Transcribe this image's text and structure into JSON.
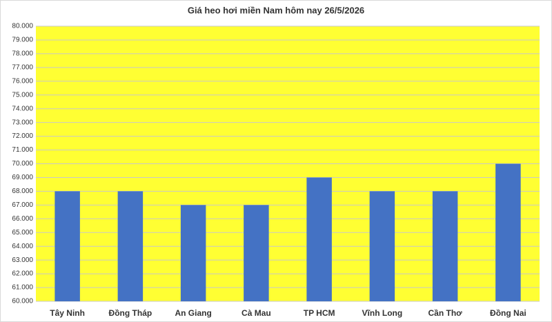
{
  "chart_data": {
    "type": "bar",
    "title": "Giá heo hơi miền Nam hôm nay 26/5/2026",
    "categories": [
      "Tây Ninh",
      "Đồng Tháp",
      "An Giang",
      "Cà Mau",
      "TP HCM",
      "Vĩnh Long",
      "Cần Thơ",
      "Đồng Nai"
    ],
    "values": [
      68000,
      68000,
      67000,
      67000,
      69000,
      68000,
      68000,
      70000
    ],
    "color": "#4472c4",
    "plot_background": "#ffff33",
    "ylim": [
      60000,
      80000
    ],
    "yticks": [
      {
        "value": 60000,
        "label": "60.000"
      },
      {
        "value": 61000,
        "label": "61.000"
      },
      {
        "value": 62000,
        "label": "62.000"
      },
      {
        "value": 63000,
        "label": "63.000"
      },
      {
        "value": 64000,
        "label": "64.000"
      },
      {
        "value": 65000,
        "label": "65.000"
      },
      {
        "value": 66000,
        "label": "66.000"
      },
      {
        "value": 67000,
        "label": "67.000"
      },
      {
        "value": 68000,
        "label": "68.000"
      },
      {
        "value": 69000,
        "label": "69.000"
      },
      {
        "value": 70000,
        "label": "70.000"
      },
      {
        "value": 71000,
        "label": "71.000"
      },
      {
        "value": 72000,
        "label": "72.000"
      },
      {
        "value": 73000,
        "label": "73.000"
      },
      {
        "value": 74000,
        "label": "74.000"
      },
      {
        "value": 75000,
        "label": "75.000"
      },
      {
        "value": 76000,
        "label": "76.000"
      },
      {
        "value": 77000,
        "label": "77.000"
      },
      {
        "value": 78000,
        "label": "78.000"
      },
      {
        "value": 79000,
        "label": "79.000"
      },
      {
        "value": 80000,
        "label": "80.000"
      }
    ],
    "grid": true
  }
}
